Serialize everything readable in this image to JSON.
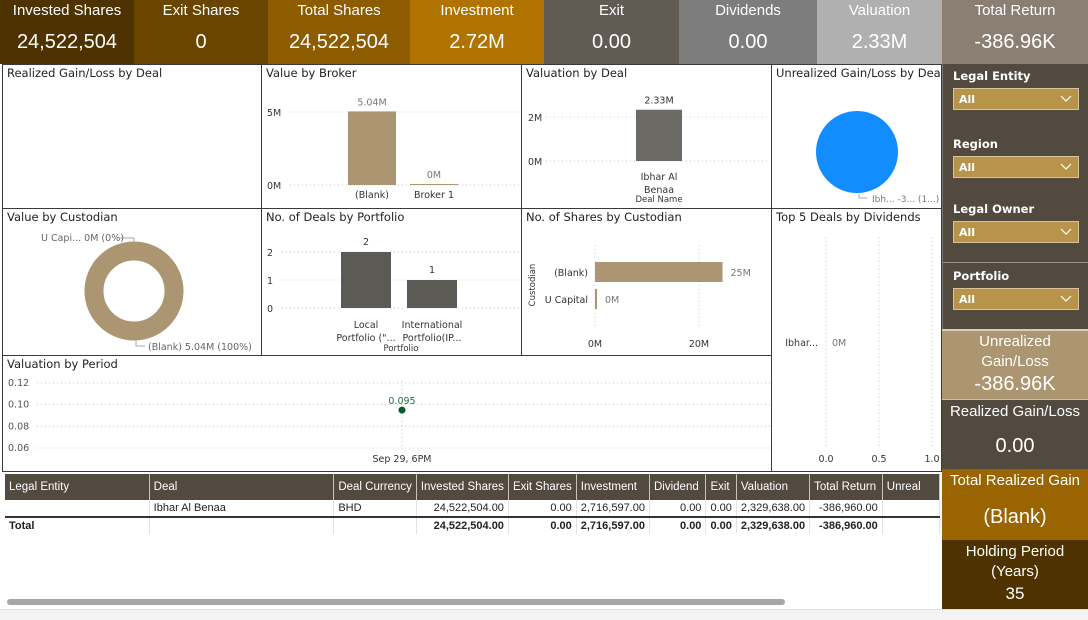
{
  "kpis": [
    {
      "label": "Invested Shares",
      "value": "24,522,504",
      "color": "#4e3300"
    },
    {
      "label": "Exit Shares",
      "value": "0",
      "color": "#6a4500"
    },
    {
      "label": "Total Shares",
      "value": "24,522,504",
      "color": "#8e5c00"
    },
    {
      "label": "Investment",
      "value": "2.72M",
      "color": "#b07300"
    },
    {
      "label": "Exit",
      "value": "0.00",
      "color": "#615b54"
    },
    {
      "label": "Dividends",
      "value": "0.00",
      "color": "#7d7d7d"
    },
    {
      "label": "Valuation",
      "value": "2.33M",
      "color": "#b0b0b0"
    },
    {
      "label": "Total Return",
      "value": "-386.96K",
      "color": "#8a7f72"
    }
  ],
  "panels": {
    "realized_by_deal": {
      "title": "Realized Gain/Loss by Deal"
    },
    "value_by_broker": {
      "title": "Value by Broker"
    },
    "valuation_by_deal": {
      "title": "Valuation by Deal"
    },
    "unrealized_by_deal": {
      "title": "Unrealized Gain/Loss by Deal"
    },
    "value_by_custodian": {
      "title": "Value by Custodian"
    },
    "deals_by_portfolio": {
      "title": "No. of Deals by Portfolio"
    },
    "shares_by_custodian": {
      "title": "No. of Shares by Custodian"
    },
    "top5_dividends": {
      "title": "Top 5 Deals by Dividends"
    },
    "valuation_by_period": {
      "title": "Valuation by Period"
    }
  },
  "chart_data": [
    {
      "id": "value_by_broker",
      "type": "bar",
      "title": "Value by Broker",
      "categories": [
        "(Blank)",
        "Broker 1"
      ],
      "values": [
        5040000,
        0
      ],
      "data_labels": [
        "5.04M",
        "0M"
      ],
      "yticks": [
        "0M",
        "5M"
      ],
      "ylim": [
        0,
        5000000
      ],
      "color": "#ac9571",
      "grid": true
    },
    {
      "id": "valuation_by_deal",
      "type": "bar",
      "title": "Valuation by Deal",
      "categories": [
        "Ibhar Al Benaa"
      ],
      "category_lines": [
        "Ibhar Al",
        "Benaa"
      ],
      "values": [
        2330000
      ],
      "data_labels": [
        "2.33M"
      ],
      "yticks": [
        "0M",
        "2M"
      ],
      "ylim": [
        0,
        2000000
      ],
      "xlabel": "Deal Name",
      "color": "#6b6a64",
      "grid": true
    },
    {
      "id": "unrealized_by_deal",
      "type": "pie",
      "title": "Unrealized Gain/Loss by Deal",
      "slices": [
        {
          "label": "Ibhar Al Benaa",
          "value": -386960,
          "percent": 100
        }
      ],
      "data_label": "Ibh... -3... (1...)",
      "color": "#118dff"
    },
    {
      "id": "value_by_custodian",
      "type": "pie",
      "donut": true,
      "title": "Value by Custodian",
      "slices": [
        {
          "label": "(Blank)",
          "value": 5040000,
          "percent": 100
        },
        {
          "label": "U Capital",
          "value": 0,
          "percent": 0
        }
      ],
      "labels": [
        "U Capi... 0M (0%)",
        "(Blank) 5.04M (100%)"
      ],
      "color": "#ac9571"
    },
    {
      "id": "deals_by_portfolio",
      "type": "bar",
      "title": "No. of Deals by Portfolio",
      "categories": [
        "Local Portfolio (\"...",
        "International Portfolio(IP..."
      ],
      "category_lines": [
        [
          "Local",
          "Portfolio (\"..."
        ],
        [
          "International",
          "Portfolio(IP..."
        ]
      ],
      "values": [
        2,
        1
      ],
      "data_labels": [
        "2",
        "1"
      ],
      "yticks": [
        "0",
        "1",
        "2"
      ],
      "ylim": [
        0,
        2
      ],
      "xlabel": "Portfolio",
      "color": "#5c5a55",
      "grid": true
    },
    {
      "id": "shares_by_custodian",
      "type": "bar",
      "orientation": "horizontal",
      "title": "No. of Shares by Custodian",
      "categories": [
        "(Blank)",
        "U Capital"
      ],
      "values": [
        24522504,
        0
      ],
      "data_labels": [
        "25M",
        "0M"
      ],
      "xticks": [
        "0M",
        "20M"
      ],
      "xlim": [
        0,
        30000000
      ],
      "ylabel": "Custodian",
      "color": "#ac9571",
      "grid": true
    },
    {
      "id": "top5_dividends",
      "type": "bar",
      "orientation": "horizontal",
      "title": "Top 5 Deals by Dividends",
      "categories": [
        "Ibhar..."
      ],
      "values": [
        0
      ],
      "data_labels": [
        "0M"
      ],
      "xticks": [
        "0.0",
        "0.5",
        "1.0"
      ],
      "xlim": [
        0,
        1
      ],
      "grid": true
    },
    {
      "id": "valuation_by_period",
      "type": "scatter",
      "title": "Valuation by Period",
      "x": [
        "Sep 29, 6PM"
      ],
      "values": [
        0.095
      ],
      "data_labels": [
        "0.095"
      ],
      "yticks": [
        "0.06",
        "0.08",
        "0.10",
        "0.12"
      ],
      "ylim": [
        0.05,
        0.125
      ],
      "color": "#005a32",
      "grid": true
    }
  ],
  "filters": [
    {
      "label": "Legal Entity",
      "value": "All"
    },
    {
      "label": "Region",
      "value": "All"
    },
    {
      "label": "Legal Owner",
      "value": "All"
    },
    {
      "label": "Portfolio",
      "value": "All"
    }
  ],
  "side_kpis": {
    "unrealized": {
      "label_line1": "Unrealized",
      "label_line2": "Gain/Loss",
      "value": "-386.96K",
      "color": "#ac9571"
    },
    "realized": {
      "label": "Realized Gain/Loss",
      "value": "0.00",
      "color": "#524a3f"
    },
    "total_realized": {
      "label": "Total Realized Gain",
      "value": "(Blank)",
      "color": "#9a6400"
    },
    "holding": {
      "label_line1": "Holding Period",
      "label_line2": "(Years)",
      "value": "35",
      "color": "#4e3300"
    }
  },
  "table": {
    "columns": [
      "Legal Entity",
      "Deal",
      "Deal Currency",
      "Invested Shares",
      "Exit Shares",
      "Investment",
      "Dividend",
      "Exit",
      "Valuation",
      "Total Return",
      "Unreal"
    ],
    "rows": [
      [
        "",
        "Ibhar Al Benaa",
        "BHD",
        "24,522,504.00",
        "0.00",
        "2,716,597.00",
        "0.00",
        "0.00",
        "2,329,638.00",
        "-386,960.00",
        ""
      ]
    ],
    "total": [
      "Total",
      "",
      "",
      "24,522,504.00",
      "0.00",
      "2,716,597.00",
      "0.00",
      "0.00",
      "2,329,638.00",
      "-386,960.00",
      ""
    ]
  }
}
